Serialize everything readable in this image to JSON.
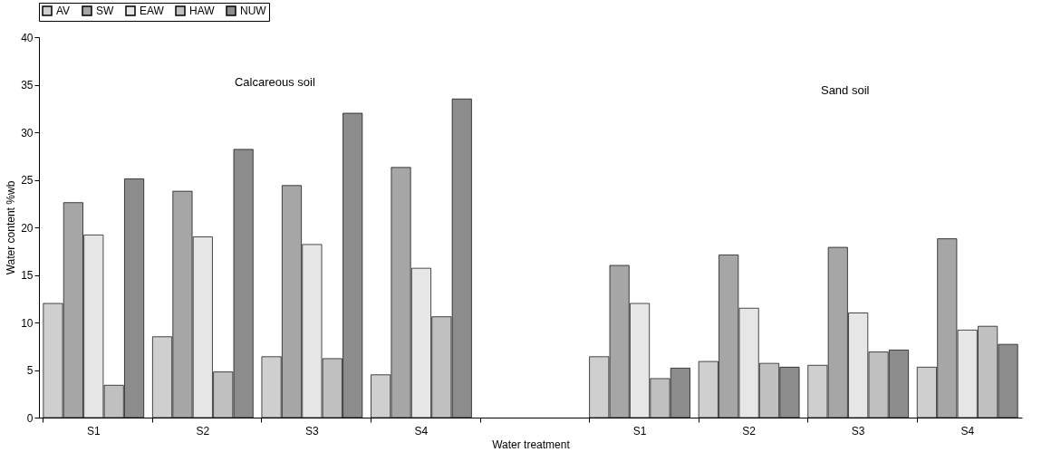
{
  "chart_data": {
    "type": "bar",
    "xlabel": "Water treatment",
    "ylabel": "Water content %wb",
    "categories": [
      "S1",
      "S2",
      "S3",
      "S4",
      null,
      "S1",
      "S2",
      "S3",
      "S4"
    ],
    "series": [
      {
        "name": "AV",
        "color": "#cfcfcf",
        "values": [
          12,
          8.5,
          6.4,
          4.5,
          null,
          6.4,
          5.9,
          5.5,
          5.3
        ]
      },
      {
        "name": "SW",
        "color": "#a6a6a6",
        "values": [
          22.6,
          23.8,
          24.4,
          26.3,
          null,
          16.0,
          17.1,
          17.9,
          18.8
        ]
      },
      {
        "name": "EAW",
        "color": "#e6e6e6",
        "values": [
          19.2,
          19.0,
          18.2,
          15.7,
          null,
          12.0,
          11.5,
          11.0,
          9.2
        ]
      },
      {
        "name": "HAW",
        "color": "#c0c0c0",
        "values": [
          3.4,
          4.8,
          6.2,
          10.6,
          null,
          4.1,
          5.7,
          6.9,
          9.6
        ]
      },
      {
        "name": "NUW",
        "color": "#8c8c8c",
        "values": [
          25.1,
          28.2,
          32.0,
          33.5,
          null,
          5.2,
          5.3,
          7.1,
          7.7
        ]
      }
    ],
    "ylim": [
      0,
      40
    ],
    "yticks": [
      0,
      5,
      10,
      15,
      20,
      25,
      30,
      35,
      40
    ],
    "grid": false,
    "legend": "top",
    "annotations": [
      "Calcareous soil",
      "Sand soil"
    ]
  }
}
